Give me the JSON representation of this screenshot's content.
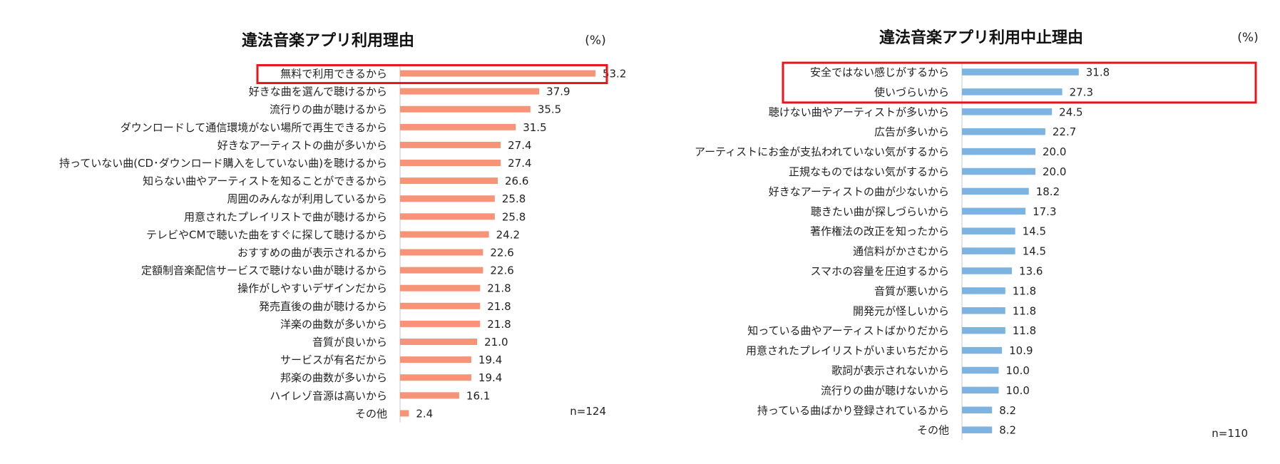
{
  "colors": {
    "left_bar": "#F79478",
    "right_bar": "#7DB3E0",
    "highlight": "#E8141B",
    "axis": "#C8C8C8"
  },
  "chart_data": [
    {
      "type": "bar",
      "orientation": "horizontal",
      "title": "違法音楽アプリ利用理由",
      "unit_label": "(%)",
      "n_label": "n=124",
      "xlim": [
        0,
        60
      ],
      "highlighted": [
        0
      ],
      "categories": [
        "無料で利用できるから",
        "好きな曲を選んで聴けるから",
        "流行りの曲が聴けるから",
        "ダウンロードして通信環境がない場所で再生できるから",
        "好きなアーティストの曲が多いから",
        "持っていない曲(CD･ダウンロード購入をしていない曲)を聴けるから",
        "知らない曲やアーティストを知ることができるから",
        "周囲のみんなが利用しているから",
        "用意されたプレイリストで曲が聴けるから",
        "テレビやCMで聴いた曲をすぐに探して聴けるから",
        "おすすめの曲が表示されるから",
        "定額制音楽配信サービスで聴けない曲が聴けるから",
        "操作がしやすいデザインだから",
        "発売直後の曲が聴けるから",
        "洋楽の曲数が多いから",
        "音質が良いから",
        "サービスが有名だから",
        "邦楽の曲数が多いから",
        "ハイレゾ音源は高いから",
        "その他"
      ],
      "values": [
        53.2,
        37.9,
        35.5,
        31.5,
        27.4,
        27.4,
        26.6,
        25.8,
        25.8,
        24.2,
        22.6,
        22.6,
        21.8,
        21.8,
        21.8,
        21.0,
        19.4,
        19.4,
        16.1,
        2.4
      ],
      "value_labels": [
        "53.2",
        "37.9",
        "35.5",
        "31.5",
        "27.4",
        "27.4",
        "26.6",
        "25.8",
        "25.8",
        "24.2",
        "22.6",
        "22.6",
        "21.8",
        "21.8",
        "21.8",
        "21.0",
        "19.4",
        "19.4",
        "16.1",
        "2.4"
      ]
    },
    {
      "type": "bar",
      "orientation": "horizontal",
      "title": "違法音楽アプリ利用中止理由",
      "unit_label": "(%)",
      "n_label": "n=110",
      "xlim": [
        0,
        60
      ],
      "highlighted": [
        0,
        1
      ],
      "categories": [
        "安全ではない感じがするから",
        "使いづらいから",
        "聴けない曲やアーティストが多いから",
        "広告が多いから",
        "アーティストにお金が支払われていない気がするから",
        "正規なものではない気がするから",
        "好きなアーティストの曲が少ないから",
        "聴きたい曲が探しづらいから",
        "著作権法の改正を知ったから",
        "通信料がかさむから",
        "スマホの容量を圧迫するから",
        "音質が悪いから",
        "開発元が怪しいから",
        "知っている曲やアーティストばかりだから",
        "用意されたプレイリストがいまいちだから",
        "歌詞が表示されないから",
        "流行りの曲が聴けないから",
        "持っている曲ばかり登録されているから",
        "その他"
      ],
      "values": [
        31.8,
        27.3,
        24.5,
        22.7,
        20.0,
        20.0,
        18.2,
        17.3,
        14.5,
        14.5,
        13.6,
        11.8,
        11.8,
        11.8,
        10.9,
        10.0,
        10.0,
        8.2,
        8.2
      ],
      "value_labels": [
        "31.8",
        "27.3",
        "24.5",
        "22.7",
        "20.0",
        "20.0",
        "18.2",
        "17.3",
        "14.5",
        "14.5",
        "13.6",
        "11.8",
        "11.8",
        "11.8",
        "10.9",
        "10.0",
        "10.0",
        "8.2",
        "8.2"
      ]
    }
  ]
}
